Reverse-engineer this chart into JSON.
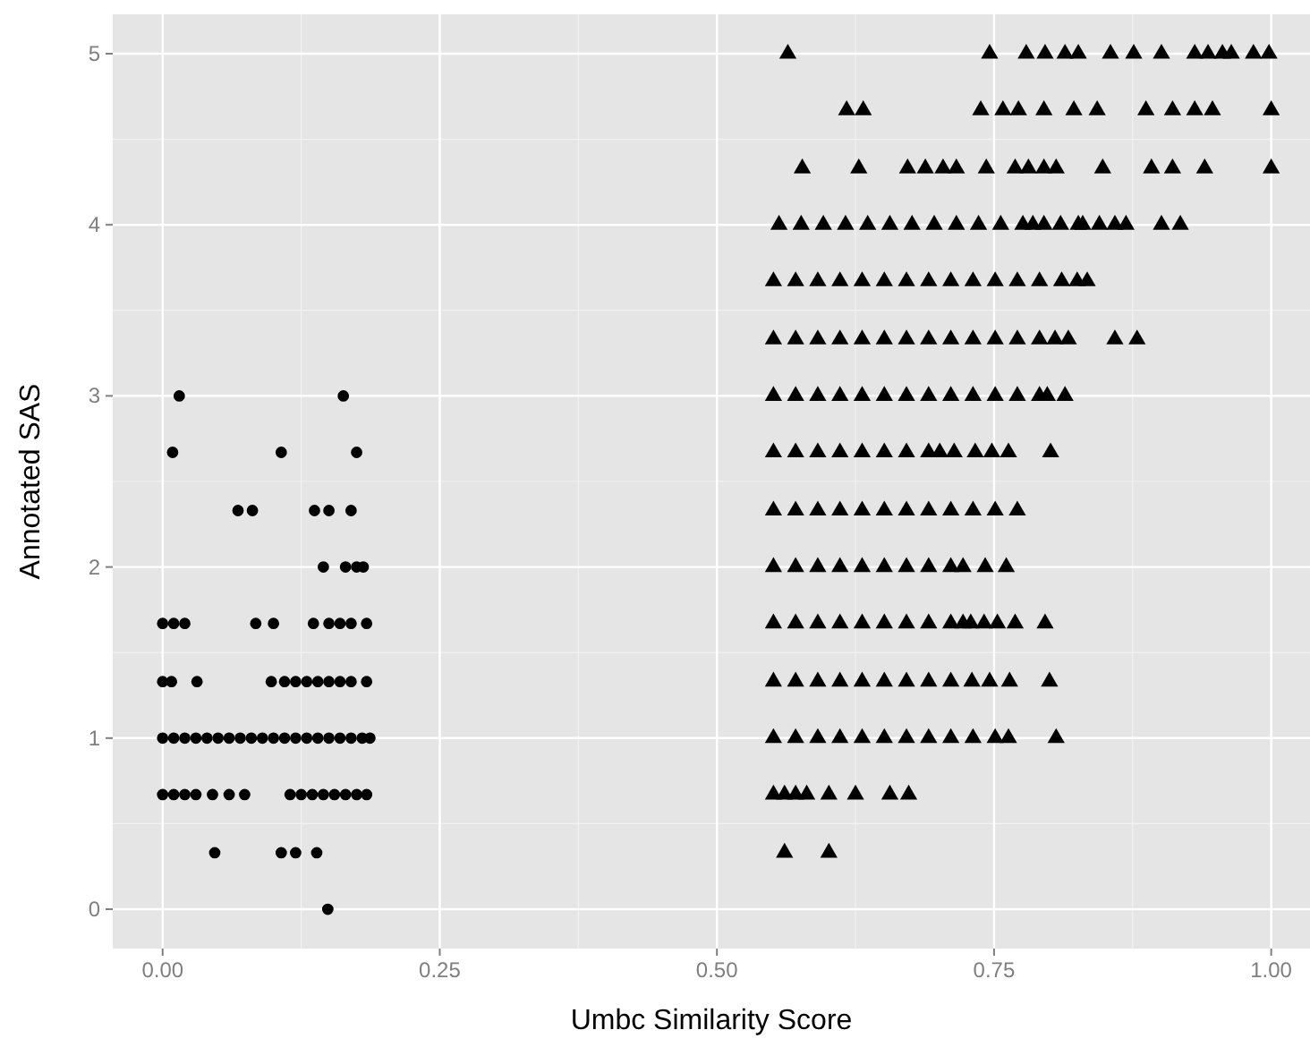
{
  "chart_data": {
    "type": "scatter",
    "xlabel": "Umbc Similarity Score",
    "ylabel": "Annotated SAS",
    "xlim": [
      -0.045,
      1.035
    ],
    "ylim": [
      -0.23,
      5.23
    ],
    "xticks": [
      {
        "value": 0,
        "label": "0.00"
      },
      {
        "value": 0.25,
        "label": "0.25"
      },
      {
        "value": 0.5,
        "label": "0.50"
      },
      {
        "value": 0.75,
        "label": "0.75"
      },
      {
        "value": 1,
        "label": "1.00"
      }
    ],
    "yticks": [
      0,
      1,
      2,
      3,
      4,
      5
    ],
    "grid": true,
    "series": [
      {
        "color": "#000000",
        "marker": "circle",
        "x": [
          0.015,
          0.163,
          0.009,
          0.107,
          0.175,
          0.068,
          0.081,
          0.137,
          0.15,
          0.17,
          0.145,
          0.165,
          0.175,
          0.181,
          0.0,
          0.01,
          0.02,
          0.084,
          0.1,
          0.136,
          0.15,
          0.16,
          0.17,
          0.184,
          0.0,
          0.008,
          0.031,
          0.098,
          0.11,
          0.12,
          0.13,
          0.14,
          0.15,
          0.16,
          0.17,
          0.184,
          0.0,
          0.01,
          0.02,
          0.03,
          0.04,
          0.05,
          0.06,
          0.07,
          0.08,
          0.09,
          0.1,
          0.11,
          0.12,
          0.13,
          0.14,
          0.15,
          0.16,
          0.17,
          0.18,
          0.187,
          0.0,
          0.01,
          0.02,
          0.03,
          0.045,
          0.06,
          0.074,
          0.115,
          0.125,
          0.135,
          0.145,
          0.155,
          0.165,
          0.175,
          0.184,
          0.047,
          0.107,
          0.12,
          0.139,
          0.149
        ],
        "values": [
          3,
          3,
          2.67,
          2.67,
          2.67,
          2.33,
          2.33,
          2.33,
          2.33,
          2.33,
          2,
          2,
          2,
          2,
          1.67,
          1.67,
          1.67,
          1.67,
          1.67,
          1.67,
          1.67,
          1.67,
          1.67,
          1.67,
          1.33,
          1.33,
          1.33,
          1.33,
          1.33,
          1.33,
          1.33,
          1.33,
          1.33,
          1.33,
          1.33,
          1.33,
          1,
          1,
          1,
          1,
          1,
          1,
          1,
          1,
          1,
          1,
          1,
          1,
          1,
          1,
          1,
          1,
          1,
          1,
          1,
          1,
          0.67,
          0.67,
          0.67,
          0.67,
          0.67,
          0.67,
          0.67,
          0.67,
          0.67,
          0.67,
          0.67,
          0.67,
          0.67,
          0.67,
          0.67,
          0.33,
          0.33,
          0.33,
          0.33,
          0
        ]
      },
      {
        "color": "#000000",
        "marker": "triangle",
        "x": [
          0.564,
          0.746,
          0.779,
          0.796,
          0.814,
          0.826,
          0.855,
          0.876,
          0.901,
          0.931,
          0.943,
          0.956,
          0.964,
          0.984,
          0.998,
          0.617,
          0.632,
          0.738,
          0.758,
          0.772,
          0.795,
          0.822,
          0.843,
          0.887,
          0.911,
          0.931,
          0.947,
          1.0,
          0.577,
          0.628,
          0.672,
          0.688,
          0.704,
          0.716,
          0.743,
          0.769,
          0.781,
          0.795,
          0.806,
          0.848,
          0.892,
          0.911,
          0.94,
          1.0,
          0.556,
          0.576,
          0.596,
          0.616,
          0.636,
          0.656,
          0.676,
          0.696,
          0.716,
          0.736,
          0.756,
          0.776,
          0.785,
          0.795,
          0.81,
          0.826,
          0.83,
          0.845,
          0.859,
          0.869,
          0.901,
          0.918,
          0.551,
          0.571,
          0.591,
          0.611,
          0.631,
          0.651,
          0.671,
          0.691,
          0.711,
          0.731,
          0.751,
          0.771,
          0.791,
          0.811,
          0.825,
          0.834,
          0.551,
          0.571,
          0.591,
          0.611,
          0.631,
          0.651,
          0.671,
          0.691,
          0.711,
          0.731,
          0.751,
          0.771,
          0.791,
          0.805,
          0.817,
          0.859,
          0.879,
          0.551,
          0.571,
          0.591,
          0.611,
          0.631,
          0.651,
          0.671,
          0.691,
          0.711,
          0.731,
          0.751,
          0.771,
          0.791,
          0.798,
          0.814,
          0.551,
          0.571,
          0.591,
          0.611,
          0.631,
          0.651,
          0.671,
          0.691,
          0.701,
          0.714,
          0.733,
          0.748,
          0.763,
          0.801,
          0.551,
          0.571,
          0.591,
          0.611,
          0.631,
          0.651,
          0.671,
          0.691,
          0.711,
          0.731,
          0.751,
          0.771,
          0.551,
          0.571,
          0.591,
          0.611,
          0.631,
          0.651,
          0.671,
          0.691,
          0.711,
          0.722,
          0.742,
          0.761,
          0.551,
          0.571,
          0.591,
          0.611,
          0.631,
          0.651,
          0.671,
          0.691,
          0.711,
          0.722,
          0.729,
          0.741,
          0.753,
          0.769,
          0.796,
          0.551,
          0.571,
          0.591,
          0.611,
          0.631,
          0.651,
          0.671,
          0.691,
          0.711,
          0.73,
          0.746,
          0.764,
          0.8,
          0.551,
          0.571,
          0.591,
          0.611,
          0.631,
          0.651,
          0.671,
          0.691,
          0.711,
          0.731,
          0.751,
          0.763,
          0.806,
          0.551,
          0.561,
          0.571,
          0.581,
          0.601,
          0.625,
          0.656,
          0.673,
          0.561,
          0.601
        ],
        "values": [
          5,
          5,
          5,
          5,
          5,
          5,
          5,
          5,
          5,
          5,
          5,
          5,
          5,
          5,
          5,
          4.67,
          4.67,
          4.67,
          4.67,
          4.67,
          4.67,
          4.67,
          4.67,
          4.67,
          4.67,
          4.67,
          4.67,
          4.67,
          4.33,
          4.33,
          4.33,
          4.33,
          4.33,
          4.33,
          4.33,
          4.33,
          4.33,
          4.33,
          4.33,
          4.33,
          4.33,
          4.33,
          4.33,
          4.33,
          4,
          4,
          4,
          4,
          4,
          4,
          4,
          4,
          4,
          4,
          4,
          4,
          4,
          4,
          4,
          4,
          4,
          4,
          4,
          4,
          4,
          4,
          3.67,
          3.67,
          3.67,
          3.67,
          3.67,
          3.67,
          3.67,
          3.67,
          3.67,
          3.67,
          3.67,
          3.67,
          3.67,
          3.67,
          3.67,
          3.67,
          3.33,
          3.33,
          3.33,
          3.33,
          3.33,
          3.33,
          3.33,
          3.33,
          3.33,
          3.33,
          3.33,
          3.33,
          3.33,
          3.33,
          3.33,
          3.33,
          3.33,
          3,
          3,
          3,
          3,
          3,
          3,
          3,
          3,
          3,
          3,
          3,
          3,
          3,
          3,
          3,
          2.67,
          2.67,
          2.67,
          2.67,
          2.67,
          2.67,
          2.67,
          2.67,
          2.67,
          2.67,
          2.67,
          2.67,
          2.67,
          2.67,
          2.33,
          2.33,
          2.33,
          2.33,
          2.33,
          2.33,
          2.33,
          2.33,
          2.33,
          2.33,
          2.33,
          2.33,
          2,
          2,
          2,
          2,
          2,
          2,
          2,
          2,
          2,
          2,
          2,
          2,
          1.67,
          1.67,
          1.67,
          1.67,
          1.67,
          1.67,
          1.67,
          1.67,
          1.67,
          1.67,
          1.67,
          1.67,
          1.67,
          1.67,
          1.67,
          1.33,
          1.33,
          1.33,
          1.33,
          1.33,
          1.33,
          1.33,
          1.33,
          1.33,
          1.33,
          1.33,
          1.33,
          1.33,
          1,
          1,
          1,
          1,
          1,
          1,
          1,
          1,
          1,
          1,
          1,
          1,
          1,
          0.67,
          0.67,
          0.67,
          0.67,
          0.67,
          0.67,
          0.67,
          0.67,
          0.33,
          0.33
        ]
      }
    ]
  }
}
